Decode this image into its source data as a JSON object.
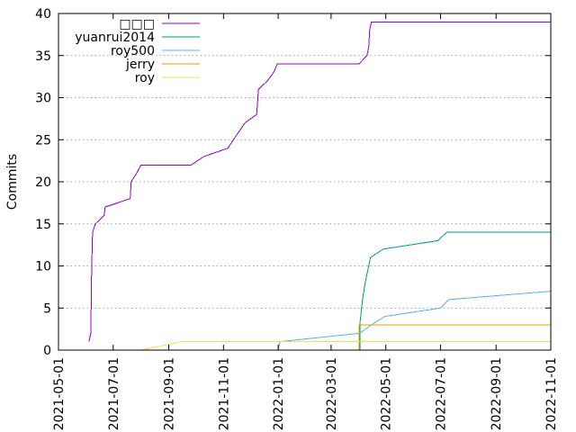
{
  "chart_data": {
    "type": "line",
    "title": "",
    "xlabel": "",
    "ylabel": "Commits",
    "grid": "horizontal",
    "legend_position": "top-left",
    "xlim": [
      "2021-05-01",
      "2022-11-01"
    ],
    "ylim": [
      0,
      40
    ],
    "xticks": [
      "2021-05-01",
      "2021-07-01",
      "2021-09-01",
      "2021-11-01",
      "2022-01-01",
      "2022-03-01",
      "2022-05-01",
      "2022-07-01",
      "2022-09-01",
      "2022-11-01"
    ],
    "yticks": [
      0,
      5,
      10,
      15,
      20,
      25,
      30,
      35,
      40
    ],
    "series": [
      {
        "name": "□□□",
        "color": "#9400d3",
        "points": [
          [
            "2021-06-04",
            1
          ],
          [
            "2021-06-06",
            2
          ],
          [
            "2021-06-07",
            10
          ],
          [
            "2021-06-08",
            14
          ],
          [
            "2021-06-11",
            15
          ],
          [
            "2021-06-21",
            16
          ],
          [
            "2021-06-22",
            17
          ],
          [
            "2021-07-20",
            18
          ],
          [
            "2021-07-21",
            20
          ],
          [
            "2021-07-27",
            21
          ],
          [
            "2021-08-01",
            22
          ],
          [
            "2021-09-26",
            22
          ],
          [
            "2021-10-10",
            23
          ],
          [
            "2021-11-06",
            24
          ],
          [
            "2021-11-12",
            25
          ],
          [
            "2021-11-25",
            27
          ],
          [
            "2021-12-08",
            28
          ],
          [
            "2021-12-10",
            31
          ],
          [
            "2021-12-20",
            32
          ],
          [
            "2021-12-27",
            33
          ],
          [
            "2021-12-31",
            34
          ],
          [
            "2022-04-01",
            34
          ],
          [
            "2022-04-10",
            35
          ],
          [
            "2022-04-12",
            36
          ],
          [
            "2022-04-13",
            38
          ],
          [
            "2022-04-15",
            39
          ],
          [
            "2022-11-01",
            39
          ]
        ]
      },
      {
        "name": "yuanrui2014",
        "color": "#009e73",
        "points": [
          [
            "2022-04-02",
            0
          ],
          [
            "2022-04-02",
            3
          ],
          [
            "2022-04-05",
            6
          ],
          [
            "2022-04-08",
            8
          ],
          [
            "2022-04-10",
            9
          ],
          [
            "2022-04-12",
            10
          ],
          [
            "2022-04-14",
            11
          ],
          [
            "2022-04-28",
            12
          ],
          [
            "2022-06-28",
            13
          ],
          [
            "2022-07-08",
            14
          ],
          [
            "2022-11-01",
            14
          ]
        ]
      },
      {
        "name": "roy500",
        "color": "#56b4e9",
        "points": [
          [
            "2022-01-01",
            0
          ],
          [
            "2022-01-03",
            1
          ],
          [
            "2022-04-02",
            2
          ],
          [
            "2022-04-15",
            3
          ],
          [
            "2022-04-30",
            4
          ],
          [
            "2022-07-01",
            5
          ],
          [
            "2022-07-10",
            6
          ],
          [
            "2022-11-01",
            7
          ]
        ]
      },
      {
        "name": "jerry",
        "color": "#e69f00",
        "points": [
          [
            "2022-04-01",
            0
          ],
          [
            "2022-04-01",
            3
          ],
          [
            "2022-11-01",
            3
          ]
        ]
      },
      {
        "name": "roy",
        "color": "#f0e442",
        "points": [
          [
            "2021-08-01",
            0
          ],
          [
            "2021-09-15",
            1
          ],
          [
            "2022-11-01",
            1
          ]
        ]
      }
    ]
  }
}
